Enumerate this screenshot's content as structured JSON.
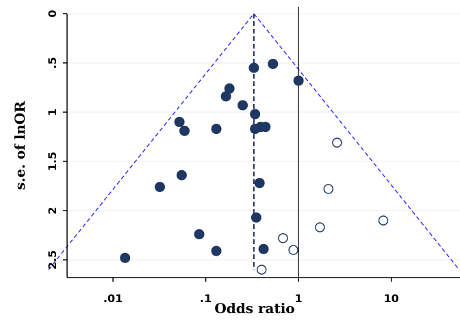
{
  "chart_data": {
    "type": "scatter",
    "title": "",
    "xlabel": "Odds ratio",
    "ylabel": "s.e. of lnOR",
    "x_scale": "log",
    "xlim": [
      0.0032,
      55
    ],
    "ylim": [
      2.68,
      0
    ],
    "grid": true,
    "x_ticks": [
      {
        "value": 0.01,
        "label": ".01"
      },
      {
        "value": 0.1,
        "label": ".1"
      },
      {
        "value": 1,
        "label": "1"
      },
      {
        "value": 10,
        "label": "10"
      }
    ],
    "y_ticks": [
      {
        "value": 0,
        "label": "0"
      },
      {
        "value": 0.5,
        "label": ".5"
      },
      {
        "value": 1,
        "label": "1"
      },
      {
        "value": 1.5,
        "label": "1.5"
      },
      {
        "value": 2,
        "label": "2"
      },
      {
        "value": 2.5,
        "label": "2.5"
      }
    ],
    "pooled_or": 0.33,
    "null_line": 1,
    "funnel_color": "#3333ff",
    "series": [
      {
        "style": "filled",
        "color": "#1f3763",
        "points": [
          {
            "x": 0.33,
            "y": 0.55
          },
          {
            "x": 0.53,
            "y": 0.51
          },
          {
            "x": 1.0,
            "y": 0.68
          },
          {
            "x": 0.18,
            "y": 0.76
          },
          {
            "x": 0.165,
            "y": 0.84
          },
          {
            "x": 0.25,
            "y": 0.93
          },
          {
            "x": 0.34,
            "y": 1.02
          },
          {
            "x": 0.052,
            "y": 1.1
          },
          {
            "x": 0.059,
            "y": 1.19
          },
          {
            "x": 0.13,
            "y": 1.17
          },
          {
            "x": 0.34,
            "y": 1.17
          },
          {
            "x": 0.39,
            "y": 1.15
          },
          {
            "x": 0.44,
            "y": 1.15
          },
          {
            "x": 0.055,
            "y": 1.64
          },
          {
            "x": 0.032,
            "y": 1.76
          },
          {
            "x": 0.38,
            "y": 1.72
          },
          {
            "x": 0.35,
            "y": 2.07
          },
          {
            "x": 0.085,
            "y": 2.24
          },
          {
            "x": 0.13,
            "y": 2.41
          },
          {
            "x": 0.42,
            "y": 2.39
          },
          {
            "x": 0.0135,
            "y": 2.48
          }
        ]
      },
      {
        "style": "hollow",
        "color": "#1f3763",
        "points": [
          {
            "x": 2.6,
            "y": 1.31
          },
          {
            "x": 2.1,
            "y": 1.78
          },
          {
            "x": 8.2,
            "y": 2.1
          },
          {
            "x": 1.7,
            "y": 2.17
          },
          {
            "x": 0.68,
            "y": 2.28
          },
          {
            "x": 0.88,
            "y": 2.4
          },
          {
            "x": 0.4,
            "y": 2.6
          }
        ]
      }
    ]
  }
}
